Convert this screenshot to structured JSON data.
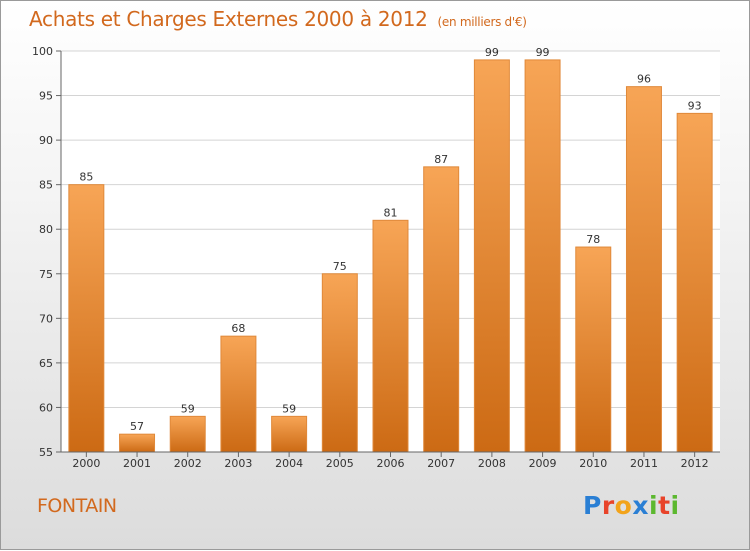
{
  "title": {
    "main": "Achats et Charges Externes 2000 à 2012",
    "unit": "(en milliers d'€)"
  },
  "commune": "FONTAIN",
  "logo": {
    "letters": [
      "P",
      "r",
      "o",
      "x",
      "i",
      "t",
      "i"
    ],
    "colors": [
      "#2a7fd4",
      "#e8432a",
      "#f2a31a",
      "#2a7fd4",
      "#5cb82f",
      "#e8432a",
      "#5cb82f"
    ]
  },
  "chart_data": {
    "type": "bar",
    "categories": [
      "2000",
      "2001",
      "2002",
      "2003",
      "2004",
      "2005",
      "2006",
      "2007",
      "2008",
      "2009",
      "2010",
      "2011",
      "2012"
    ],
    "values": [
      85,
      57,
      59,
      68,
      59,
      75,
      81,
      87,
      99,
      99,
      78,
      96,
      93
    ],
    "value_labels": [
      "85",
      "57",
      "59",
      "68",
      "59",
      "75",
      "81",
      "87",
      "99",
      "99",
      "78",
      "96",
      "93"
    ],
    "ylim": [
      55,
      100
    ],
    "yticks": [
      55,
      60,
      65,
      70,
      75,
      80,
      85,
      90,
      95,
      100
    ],
    "ytick_labels": [
      "55",
      "60",
      "65",
      "70",
      "75",
      "80",
      "85",
      "90",
      "95",
      "100"
    ],
    "grid": true,
    "colors": {
      "bar_top": "#f7a556",
      "bar_bottom": "#cc6a14",
      "bar_edge": "#e0893a"
    }
  }
}
